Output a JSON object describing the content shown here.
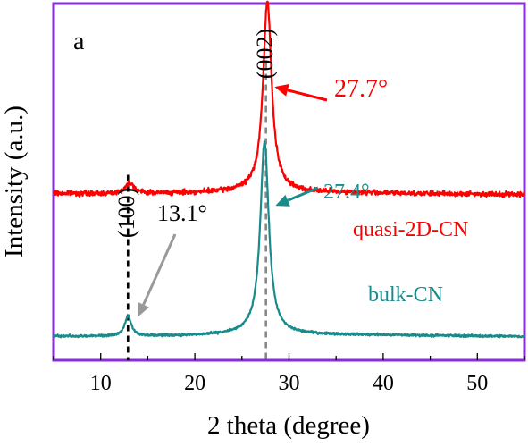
{
  "chart_data": {
    "type": "line",
    "panel_label": "a",
    "xlabel": "2 theta (degree)",
    "ylabel": "Intensity (a.u.)",
    "xlim": [
      5,
      55
    ],
    "x_ticks": [
      10,
      20,
      30,
      40,
      50
    ],
    "x_tick_labels": [
      "10",
      "20",
      "30",
      "40",
      "50"
    ],
    "y_ticks_shown": false,
    "grid": false,
    "frame_color": "#8a2be2",
    "series": [
      {
        "name": "quasi-2D-CN",
        "color": "#ff0000",
        "offset": 0.6,
        "noise": 0.01,
        "baseline": [
          [
            5,
            0.002
          ],
          [
            10,
            0.0
          ],
          [
            20,
            0.004
          ],
          [
            25,
            0.01
          ],
          [
            35,
            0.006
          ],
          [
            45,
            0.0
          ],
          [
            55,
            -0.002
          ]
        ],
        "peaks": [
          {
            "center": 13.1,
            "height": 0.045,
            "width": 0.55
          },
          {
            "center": 27.7,
            "height": 0.8,
            "width": 0.55
          }
        ]
      },
      {
        "name": "bulk-CN",
        "color": "#1a8a8a",
        "offset": 0.0,
        "noise": 0.005,
        "baseline": [
          [
            5,
            0.0
          ],
          [
            20,
            0.004
          ],
          [
            25,
            0.01
          ],
          [
            35,
            0.008
          ],
          [
            55,
            0.0
          ]
        ],
        "peaks": [
          {
            "center": 12.9,
            "height": 0.085,
            "width": 0.4
          },
          {
            "center": 27.4,
            "height": 0.81,
            "width": 0.55
          }
        ]
      }
    ],
    "reference_lines": [
      {
        "x": 12.9,
        "color": "#000000",
        "label": "(100)"
      },
      {
        "x": 27.55,
        "color": "#888888",
        "label": "(002)"
      }
    ],
    "annotations": [
      {
        "text": "27.7°",
        "color": "#ff0000",
        "points_to": [
          27.9,
          1.05
        ]
      },
      {
        "text": "27.4°",
        "color": "#1a8a8a",
        "points_to": [
          27.8,
          0.55
        ]
      },
      {
        "text": "13.1°",
        "color": "#000000",
        "arrow_color": "#999999",
        "points_to": [
          13.2,
          0.12
        ]
      }
    ]
  }
}
